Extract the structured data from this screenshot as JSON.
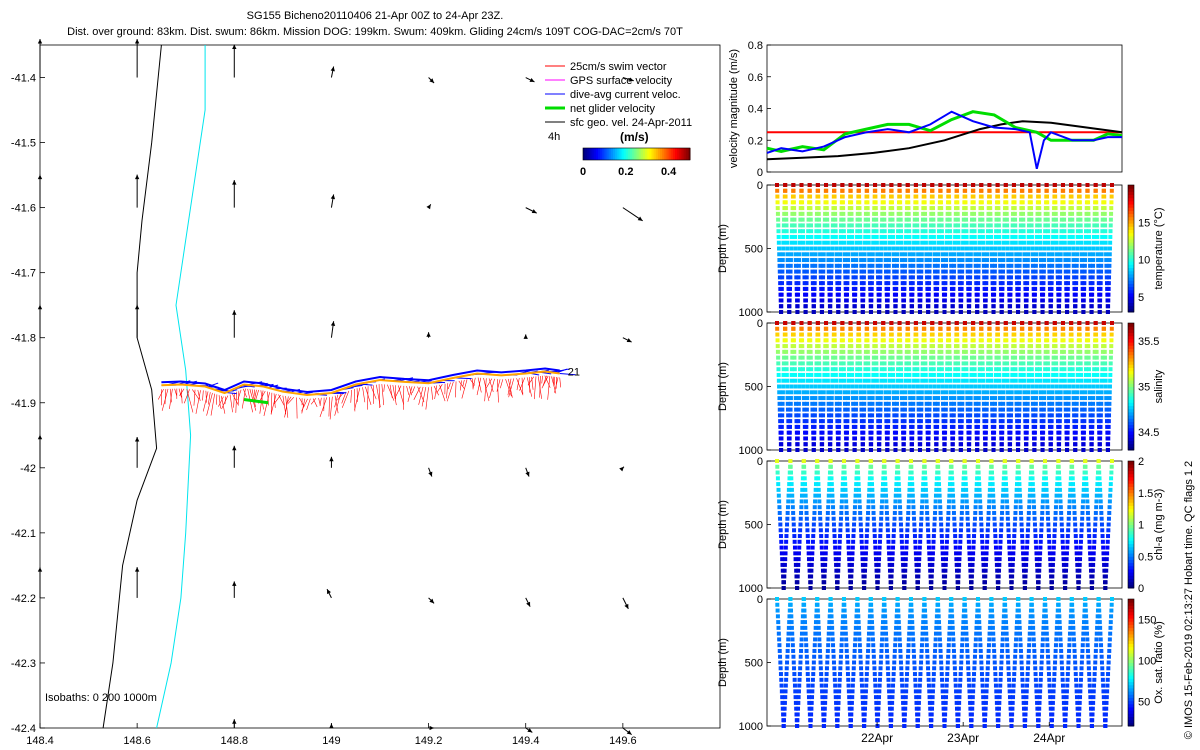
{
  "title_line1": "SG155 Bicheno20110406 21-Apr 00Z to 24-Apr 23Z.",
  "title_line2": "Dist. over ground: 83km. Dist. swum: 86km. Mission DOG: 199km. Swum: 409km. Gliding 24cm/s 109T COG-DAC=2cm/s 70T",
  "credit": "© IMOS 15-Feb-2019 02:13:27 Hobart time. QC flags 1  2",
  "colors": {
    "swim": "#ff0000",
    "gps": "#ff00ff",
    "dac": "#0000ff",
    "net": "#00dd00",
    "sfc": "#000000",
    "isobath0": "#000000",
    "isobath200": "#000000",
    "isobath1000": "#00e5ee",
    "track": "#ffa500"
  },
  "chart_data": [
    {
      "type": "scatter",
      "name": "map",
      "xlim": [
        148.4,
        149.8
      ],
      "ylim": [
        -42.4,
        -41.35
      ],
      "xticks": [
        "148.4",
        "148.6",
        "148.8",
        "149",
        "149.2",
        "149.4",
        "149.6"
      ],
      "yticks": [
        "-41.4",
        "-41.5",
        "-41.6",
        "-41.7",
        "-41.8",
        "-41.9",
        "-42",
        "-42.1",
        "-42.2",
        "-42.3",
        "-42.4"
      ],
      "legend": {
        "placement": "top-right",
        "entries": [
          "25cm/s swim vector",
          "GPS surface velocity",
          "dive-avg current veloc.",
          "net glider velocity",
          "sfc geo. vel. 24-Apr-2011"
        ]
      },
      "legend_note": "4h",
      "colorbar": {
        "title": "(m/s)",
        "ticks": [
          "0",
          "0.2",
          "0.4"
        ],
        "range": [
          0,
          0.5
        ]
      },
      "track_end_label": "21",
      "isobaths_label": "Isobaths: 0   200   1000m",
      "isobath_0": [
        [
          148.65,
          -41.35
        ],
        [
          148.63,
          -41.5
        ],
        [
          148.61,
          -41.62
        ],
        [
          148.6,
          -41.7
        ],
        [
          148.6,
          -41.8
        ],
        [
          148.63,
          -41.88
        ],
        [
          148.64,
          -41.97
        ],
        [
          148.6,
          -42.05
        ],
        [
          148.57,
          -42.15
        ],
        [
          148.55,
          -42.3
        ],
        [
          148.53,
          -42.4
        ]
      ],
      "isobath_1000": [
        [
          148.74,
          -41.35
        ],
        [
          148.74,
          -41.45
        ],
        [
          148.72,
          -41.55
        ],
        [
          148.7,
          -41.65
        ],
        [
          148.68,
          -41.75
        ],
        [
          148.7,
          -41.85
        ],
        [
          148.71,
          -41.95
        ],
        [
          148.7,
          -42.1
        ],
        [
          148.69,
          -42.2
        ],
        [
          148.67,
          -42.3
        ],
        [
          148.64,
          -42.4
        ]
      ],
      "track": [
        [
          148.65,
          -41.873
        ],
        [
          148.69,
          -41.872
        ],
        [
          148.74,
          -41.875
        ],
        [
          148.78,
          -41.885
        ],
        [
          148.82,
          -41.872
        ],
        [
          148.86,
          -41.875
        ],
        [
          148.9,
          -41.883
        ],
        [
          148.95,
          -41.888
        ],
        [
          149.0,
          -41.885
        ],
        [
          149.05,
          -41.872
        ],
        [
          149.1,
          -41.865
        ],
        [
          149.15,
          -41.868
        ],
        [
          149.2,
          -41.87
        ],
        [
          149.25,
          -41.862
        ],
        [
          149.3,
          -41.855
        ],
        [
          149.35,
          -41.858
        ],
        [
          149.4,
          -41.855
        ],
        [
          149.44,
          -41.852
        ],
        [
          149.47,
          -41.855
        ]
      ],
      "sfc_vectors": [
        {
          "lon": 148.4,
          "lat": -41.4,
          "u": 0.0,
          "v": 0.35
        },
        {
          "lon": 148.6,
          "lat": -41.4,
          "u": 0.0,
          "v": 0.35
        },
        {
          "lon": 148.8,
          "lat": -41.4,
          "u": 0.0,
          "v": 0.3
        },
        {
          "lon": 149.0,
          "lat": -41.4,
          "u": 0.02,
          "v": 0.1
        },
        {
          "lon": 149.2,
          "lat": -41.4,
          "u": 0.05,
          "v": -0.05
        },
        {
          "lon": 149.4,
          "lat": -41.4,
          "u": 0.08,
          "v": -0.04
        },
        {
          "lon": 149.6,
          "lat": -41.4,
          "u": 0.1,
          "v": -0.03
        },
        {
          "lon": 148.4,
          "lat": -41.6,
          "u": 0.0,
          "v": 0.3
        },
        {
          "lon": 148.6,
          "lat": -41.6,
          "u": 0.0,
          "v": 0.3
        },
        {
          "lon": 148.8,
          "lat": -41.6,
          "u": 0.0,
          "v": 0.25
        },
        {
          "lon": 149.0,
          "lat": -41.6,
          "u": 0.02,
          "v": 0.12
        },
        {
          "lon": 149.2,
          "lat": -41.6,
          "u": 0.02,
          "v": 0.03
        },
        {
          "lon": 149.4,
          "lat": -41.6,
          "u": 0.1,
          "v": -0.05
        },
        {
          "lon": 149.6,
          "lat": -41.6,
          "u": 0.18,
          "v": -0.12
        },
        {
          "lon": 148.4,
          "lat": -41.8,
          "u": 0.0,
          "v": 0.3
        },
        {
          "lon": 148.6,
          "lat": -41.8,
          "u": 0.0,
          "v": 0.3
        },
        {
          "lon": 148.8,
          "lat": -41.8,
          "u": 0.0,
          "v": 0.25
        },
        {
          "lon": 149.0,
          "lat": -41.8,
          "u": 0.02,
          "v": 0.15
        },
        {
          "lon": 149.2,
          "lat": -41.8,
          "u": 0.0,
          "v": 0.05
        },
        {
          "lon": 149.4,
          "lat": -41.8,
          "u": 0.0,
          "v": 0.03
        },
        {
          "lon": 149.6,
          "lat": -41.8,
          "u": 0.08,
          "v": -0.04
        },
        {
          "lon": 148.4,
          "lat": -42.0,
          "u": 0.0,
          "v": 0.3
        },
        {
          "lon": 148.6,
          "lat": -42.0,
          "u": 0.0,
          "v": 0.28
        },
        {
          "lon": 148.8,
          "lat": -42.0,
          "u": 0.0,
          "v": 0.2
        },
        {
          "lon": 149.0,
          "lat": -42.0,
          "u": 0.0,
          "v": 0.1
        },
        {
          "lon": 149.2,
          "lat": -42.0,
          "u": 0.03,
          "v": -0.08
        },
        {
          "lon": 149.4,
          "lat": -42.0,
          "u": 0.03,
          "v": -0.08
        },
        {
          "lon": 149.6,
          "lat": -42.0,
          "u": 0.01,
          "v": 0.01
        },
        {
          "lon": 148.4,
          "lat": -42.2,
          "u": 0.0,
          "v": 0.28
        },
        {
          "lon": 148.6,
          "lat": -42.2,
          "u": 0.0,
          "v": 0.28
        },
        {
          "lon": 148.8,
          "lat": -42.2,
          "u": 0.0,
          "v": 0.15
        },
        {
          "lon": 149.0,
          "lat": -42.2,
          "u": -0.04,
          "v": 0.08
        },
        {
          "lon": 149.2,
          "lat": -42.2,
          "u": 0.05,
          "v": -0.05
        },
        {
          "lon": 149.4,
          "lat": -42.2,
          "u": 0.04,
          "v": -0.08
        },
        {
          "lon": 149.6,
          "lat": -42.2,
          "u": 0.05,
          "v": -0.1
        },
        {
          "lon": 148.8,
          "lat": -42.4,
          "u": 0.0,
          "v": 0.08
        },
        {
          "lon": 149.0,
          "lat": -42.4,
          "u": 0.0,
          "v": 0.04
        },
        {
          "lon": 149.2,
          "lat": -42.4,
          "u": 0.05,
          "v": 0.0
        },
        {
          "lon": 149.4,
          "lat": -42.4,
          "u": 0.06,
          "v": -0.04
        },
        {
          "lon": 149.6,
          "lat": -42.4,
          "u": 0.08,
          "v": -0.06
        }
      ]
    },
    {
      "type": "line",
      "name": "velocity",
      "ylabel": "velocity magnitude (m/s)",
      "ylim": [
        0,
        0.8
      ],
      "yticks": [
        "0",
        "0.2",
        "0.4",
        "0.6",
        "0.8"
      ],
      "xlim": [
        0,
        5
      ],
      "series": [
        {
          "color": "#ff0000",
          "x": [
            0,
            5
          ],
          "values": [
            0.25,
            0.25
          ]
        },
        {
          "color": "#000000",
          "x": [
            0,
            0.5,
            1,
            1.5,
            2,
            2.5,
            3,
            3.3,
            3.6,
            4,
            4.5,
            5
          ],
          "values": [
            0.08,
            0.09,
            0.1,
            0.12,
            0.15,
            0.2,
            0.27,
            0.3,
            0.32,
            0.31,
            0.28,
            0.25
          ]
        },
        {
          "color": "#00dd00",
          "x": [
            0,
            0.2,
            0.5,
            0.8,
            1.1,
            1.4,
            1.7,
            2.0,
            2.3,
            2.6,
            2.9,
            3.2,
            3.5,
            3.8,
            4.0,
            4.3,
            4.6,
            4.8,
            5
          ],
          "values": [
            0.15,
            0.13,
            0.16,
            0.14,
            0.24,
            0.27,
            0.3,
            0.3,
            0.26,
            0.33,
            0.38,
            0.36,
            0.28,
            0.25,
            0.2,
            0.2,
            0.2,
            0.24,
            0.23
          ]
        },
        {
          "color": "#0000ff",
          "x": [
            0,
            0.2,
            0.5,
            0.8,
            1.1,
            1.4,
            1.7,
            2.0,
            2.3,
            2.6,
            2.9,
            3.2,
            3.5,
            3.7,
            3.8,
            3.9,
            4.0,
            4.3,
            4.6,
            4.8,
            5
          ],
          "values": [
            0.12,
            0.15,
            0.13,
            0.16,
            0.22,
            0.25,
            0.27,
            0.25,
            0.3,
            0.38,
            0.32,
            0.28,
            0.27,
            0.25,
            0.02,
            0.2,
            0.25,
            0.2,
            0.2,
            0.22,
            0.22
          ]
        }
      ]
    },
    {
      "type": "heatmap",
      "name": "temperature",
      "ylabel": "Depth (m)",
      "cbar_label": "temperature (°C)",
      "cbar_ticks": [
        "5",
        "10",
        "15"
      ],
      "vmin": 3,
      "vmax": 20,
      "ylim": [
        1000,
        0
      ],
      "yticks": [
        "0",
        "500",
        "1000"
      ],
      "profile_fraction_dives": 42,
      "surface_value": 19,
      "bottom_value": 4
    },
    {
      "type": "heatmap",
      "name": "salinity",
      "ylabel": "Depth (m)",
      "cbar_label": "salinity",
      "cbar_ticks": [
        "34.5",
        "35",
        "35.5"
      ],
      "vmin": 34.3,
      "vmax": 35.7,
      "ylim": [
        1000,
        0
      ],
      "yticks": [
        "0",
        "500",
        "1000"
      ],
      "profile_fraction_dives": 42,
      "surface_value": 35.6,
      "bottom_value": 34.4
    },
    {
      "type": "heatmap",
      "name": "chla",
      "ylabel": "Depth (m)",
      "cbar_label": "chl-a (mg m-3)",
      "cbar_ticks": [
        "0",
        "0.5",
        "1",
        "1.5",
        "2"
      ],
      "vmin": 0,
      "vmax": 2,
      "ylim": [
        1000,
        0
      ],
      "yticks": [
        "0",
        "500",
        "1000"
      ],
      "profile_fraction_dives": 26,
      "surface_value": 1.2,
      "bottom_value": 0.05
    },
    {
      "type": "heatmap",
      "name": "oxsat",
      "ylabel": "Depth (m)",
      "cbar_label": "Ox. sat. ratio (%)",
      "cbar_ticks": [
        "50",
        "100",
        "150"
      ],
      "vmin": 20,
      "vmax": 175,
      "ylim": [
        1000,
        0
      ],
      "yticks": [
        "0",
        "500",
        "1000"
      ],
      "xticks": [
        "22Apr",
        "23Apr",
        "24Apr"
      ],
      "xtick_positions": [
        1.0,
        2.0,
        3.0
      ],
      "xlim": [
        0,
        4
      ],
      "profile_fraction_dives": 26,
      "surface_value": 70,
      "bottom_value": 45
    }
  ]
}
